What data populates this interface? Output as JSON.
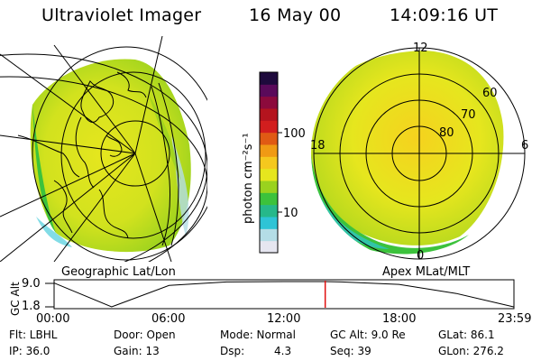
{
  "header": {
    "instrument": "Ultraviolet Imager",
    "date": "16 May 00",
    "time": "14:09:16 UT"
  },
  "map_labels": {
    "geographic": "Geographic Lat/Lon",
    "apex": "Apex MLat/MLT"
  },
  "colorbar": {
    "unit_label": "photon cm⁻²s⁻¹",
    "ticks": [
      "100",
      "10"
    ],
    "colors": [
      "#e6e6f0",
      "#b4dde6",
      "#2ec4d6",
      "#26b88a",
      "#3cc23c",
      "#9ad21e",
      "#e6e61e",
      "#f5c81e",
      "#f09a14",
      "#e05a14",
      "#d21e1e",
      "#b4141e",
      "#8c0a3c",
      "#5a0a5a",
      "#1e0a3c"
    ]
  },
  "polar_plot": {
    "mlt_labels": {
      "top": "12",
      "bottom": "0",
      "left": "18",
      "right": "6"
    },
    "lat_labels": [
      "60",
      "70",
      "80"
    ]
  },
  "orbit_panel": {
    "ylabel": "GC Alt",
    "y_ticks": [
      "9.0",
      "1.8"
    ],
    "x_ticks": [
      "00:00",
      "06:00",
      "12:00",
      "18:00",
      "23:59"
    ],
    "current_time_hours": 14.15
  },
  "status": {
    "flt": "Flt: LBHL",
    "ip": "IP: 36.0",
    "door": "Door: Open",
    "gain": "Gain: 13",
    "mode": "Mode: Normal",
    "dsp_label": "Dsp:",
    "dsp_value": "4.3",
    "gc_alt": "GC Alt: 9.0 Re",
    "seq": "Seq: 39",
    "glat": "GLat:  86.1",
    "glon": "GLon: 276.2"
  },
  "chart_data": {
    "type": "line",
    "title": "GC Alt",
    "xlabel": "",
    "ylabel": "GC Alt",
    "x": [
      0,
      3,
      6,
      9,
      12,
      14.15,
      15,
      18,
      21,
      23.98
    ],
    "y": [
      8.6,
      1.8,
      7.9,
      8.9,
      9.0,
      9.0,
      8.9,
      8.2,
      5.6,
      1.8
    ],
    "xlim": [
      0,
      24
    ],
    "ylim": [
      1.8,
      9.0
    ]
  }
}
